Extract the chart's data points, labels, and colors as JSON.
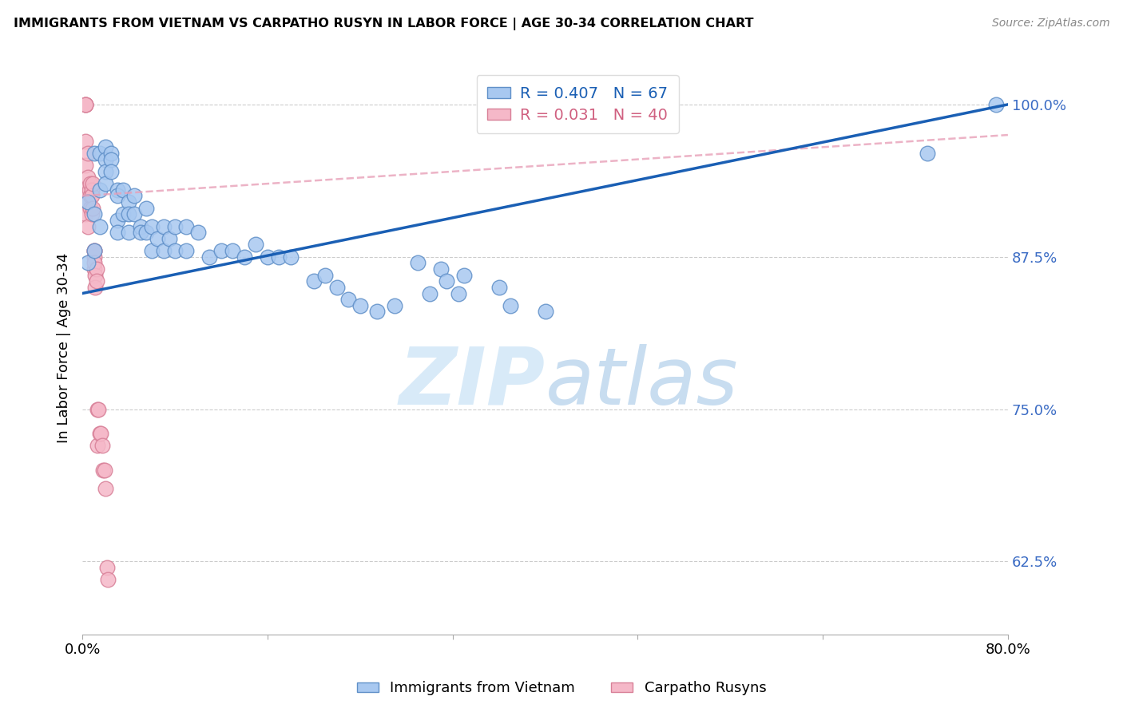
{
  "title": "IMMIGRANTS FROM VIETNAM VS CARPATHO RUSYN IN LABOR FORCE | AGE 30-34 CORRELATION CHART",
  "source": "Source: ZipAtlas.com",
  "ylabel": "In Labor Force | Age 30-34",
  "yticks": [
    0.625,
    0.75,
    0.875,
    1.0
  ],
  "ytick_labels": [
    "62.5%",
    "75.0%",
    "87.5%",
    "100.0%"
  ],
  "xlim": [
    0.0,
    0.8
  ],
  "ylim": [
    0.565,
    1.035
  ],
  "R_vietnam": 0.407,
  "N_vietnam": 67,
  "R_rusyn": 0.031,
  "N_rusyn": 40,
  "color_vietnam": "#a8c8f0",
  "color_rusyn": "#f5b8c8",
  "line_color_vietnam": "#1a5fb4",
  "line_color_rusyn": "#e8a0b8",
  "watermark_color": "#d8eaf8",
  "vietnam_x": [
    0.005,
    0.005,
    0.01,
    0.01,
    0.01,
    0.015,
    0.015,
    0.015,
    0.02,
    0.02,
    0.02,
    0.02,
    0.025,
    0.025,
    0.025,
    0.03,
    0.03,
    0.03,
    0.03,
    0.035,
    0.035,
    0.04,
    0.04,
    0.04,
    0.045,
    0.045,
    0.05,
    0.05,
    0.055,
    0.055,
    0.06,
    0.06,
    0.065,
    0.07,
    0.07,
    0.075,
    0.08,
    0.08,
    0.09,
    0.09,
    0.1,
    0.11,
    0.12,
    0.13,
    0.14,
    0.15,
    0.16,
    0.17,
    0.18,
    0.2,
    0.21,
    0.22,
    0.23,
    0.24,
    0.255,
    0.27,
    0.29,
    0.3,
    0.31,
    0.315,
    0.325,
    0.33,
    0.36,
    0.37,
    0.4,
    0.73,
    0.79
  ],
  "vietnam_y": [
    0.92,
    0.87,
    0.96,
    0.91,
    0.88,
    0.96,
    0.93,
    0.9,
    0.965,
    0.955,
    0.945,
    0.935,
    0.96,
    0.955,
    0.945,
    0.93,
    0.925,
    0.905,
    0.895,
    0.93,
    0.91,
    0.92,
    0.91,
    0.895,
    0.925,
    0.91,
    0.9,
    0.895,
    0.915,
    0.895,
    0.9,
    0.88,
    0.89,
    0.9,
    0.88,
    0.89,
    0.9,
    0.88,
    0.9,
    0.88,
    0.895,
    0.875,
    0.88,
    0.88,
    0.875,
    0.885,
    0.875,
    0.875,
    0.875,
    0.855,
    0.86,
    0.85,
    0.84,
    0.835,
    0.83,
    0.835,
    0.87,
    0.845,
    0.865,
    0.855,
    0.845,
    0.86,
    0.85,
    0.835,
    0.83,
    0.96,
    1.0
  ],
  "rusyn_x": [
    0.003,
    0.003,
    0.003,
    0.003,
    0.003,
    0.003,
    0.003,
    0.005,
    0.005,
    0.005,
    0.005,
    0.006,
    0.007,
    0.007,
    0.007,
    0.008,
    0.008,
    0.008,
    0.009,
    0.009,
    0.01,
    0.01,
    0.01,
    0.01,
    0.01,
    0.011,
    0.011,
    0.012,
    0.012,
    0.013,
    0.013,
    0.014,
    0.015,
    0.016,
    0.017,
    0.018,
    0.019,
    0.02,
    0.021,
    0.022
  ],
  "rusyn_y": [
    1.0,
    1.0,
    1.0,
    0.97,
    0.95,
    0.93,
    0.91,
    0.96,
    0.94,
    0.92,
    0.9,
    0.93,
    0.935,
    0.925,
    0.915,
    0.93,
    0.925,
    0.91,
    0.935,
    0.915,
    0.88,
    0.875,
    0.865,
    0.88,
    0.87,
    0.86,
    0.85,
    0.865,
    0.855,
    0.75,
    0.72,
    0.75,
    0.73,
    0.73,
    0.72,
    0.7,
    0.7,
    0.685,
    0.62,
    0.61
  ]
}
